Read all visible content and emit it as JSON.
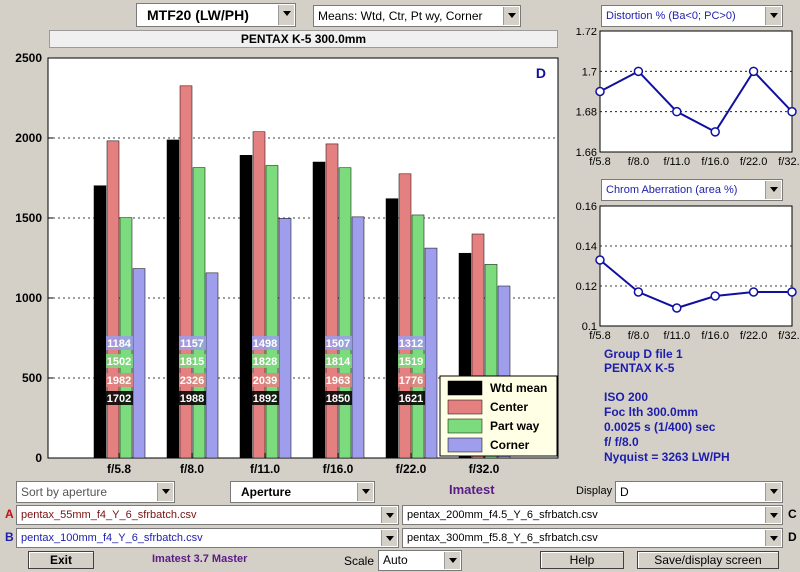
{
  "top": {
    "mtf_select": "MTF20 (LW/PH)",
    "means_select": "Means: Wtd, Ctr, Pt wy, Corner",
    "title_bar": "PENTAX K-5    300.0mm"
  },
  "colors": {
    "wtd": "#000000",
    "center": "#e58080",
    "partway": "#7cdb7c",
    "corner": "#9e9eec",
    "line": "#1010a0"
  },
  "chart_data": [
    {
      "type": "bar",
      "categories": [
        "f/5.8",
        "f/8.0",
        "f/11.0",
        "f/16.0",
        "f/22.0",
        "f/32.0"
      ],
      "series": [
        {
          "name": "Wtd mean",
          "values": [
            1702,
            1988,
            1892,
            1850,
            1621,
            1280
          ]
        },
        {
          "name": "Center",
          "values": [
            1982,
            2326,
            2039,
            1963,
            1776,
            1400
          ]
        },
        {
          "name": "Part way",
          "values": [
            1502,
            1815,
            1828,
            1814,
            1519,
            1210
          ]
        },
        {
          "name": "Corner",
          "values": [
            1184,
            1157,
            1498,
            1507,
            1312,
            1075
          ]
        }
      ],
      "yticks": [
        "0",
        "500",
        "1000",
        "1500",
        "2000",
        "2500"
      ],
      "ylim": [
        0,
        2500
      ],
      "grid": true,
      "legend": "bottom-right",
      "group_letter": "D"
    },
    {
      "type": "line",
      "title": "Distortion %  (Ba<0; PC>0)",
      "categories": [
        "f/5.8",
        "f/8.0",
        "f/11.0",
        "f/16.0",
        "f/22.0",
        "f/32.0"
      ],
      "values": [
        1.69,
        1.7,
        1.68,
        1.67,
        1.7,
        1.68
      ],
      "yticks": [
        "1.66",
        "1.68",
        "1.7",
        "1.72"
      ],
      "ylim": [
        1.66,
        1.72
      ],
      "grid": true
    },
    {
      "type": "line",
      "title": "Chrom Aberration (area %)",
      "categories": [
        "f/5.8",
        "f/8.0",
        "f/11.0",
        "f/16.0",
        "f/22.0",
        "f/32.0"
      ],
      "values": [
        0.133,
        0.117,
        0.109,
        0.115,
        0.117,
        0.117
      ],
      "yticks": [
        "0.1",
        "0.12",
        "0.14",
        "0.16"
      ],
      "ylim": [
        0.1,
        0.16
      ],
      "grid": true
    }
  ],
  "info": {
    "line1": "Group D file 1",
    "line2": "PENTAX K-5",
    "line3": "ISO  200",
    "line4": "Foc lth  300.0mm",
    "line5": "0.0025 s  (1/400)  sec",
    "line6": "f/  f/8.0",
    "line7": "Nyquist = 3263 LW/PH"
  },
  "controls": {
    "sort_select": "Sort by aperture",
    "aperture_select": "Aperture",
    "brand": "Imatest",
    "display_label": "Display",
    "display_select": "D",
    "file_a_letter": "A",
    "file_a": "pentax_55mm_f4_Y_6_sfrbatch.csv",
    "file_b_letter": "B",
    "file_b": "pentax_100mm_f4_Y_6_sfrbatch.csv",
    "file_c_letter": "C",
    "file_c": "pentax_200mm_f4.5_Y_6_sfrbatch.csv",
    "file_d_letter": "D",
    "file_d": "pentax_300mm_f5.8_Y_6_sfrbatch.csv",
    "exit_button": "Exit",
    "version": "Imatest 3.7 Master",
    "scale_label": "Scale",
    "scale_select": "Auto",
    "help_button": "Help",
    "save_button": "Save/display screen"
  }
}
